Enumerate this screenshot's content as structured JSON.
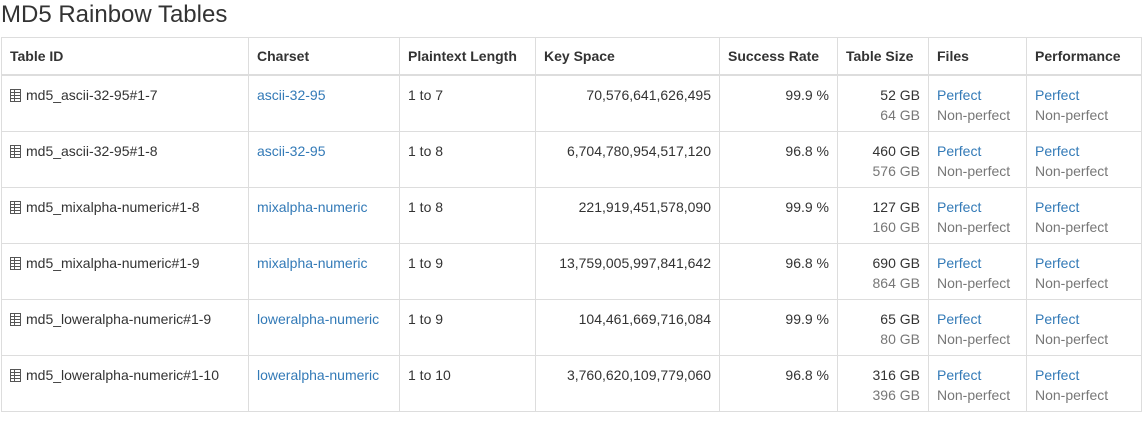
{
  "page": {
    "title": "MD5 Rainbow Tables"
  },
  "table": {
    "headers": {
      "table_id": "Table ID",
      "charset": "Charset",
      "plaintext_length": "Plaintext Length",
      "key_space": "Key Space",
      "success_rate": "Success Rate",
      "table_size": "Table Size",
      "files": "Files",
      "performance": "Performance"
    },
    "rows": [
      {
        "table_id": "md5_ascii-32-95#1-7",
        "charset": "ascii-32-95",
        "plaintext_length": "1 to 7",
        "key_space": "70,576,641,626,495",
        "success_rate": "99.9 %",
        "size_perfect": "52 GB",
        "size_nonperfect": "64 GB",
        "files_perfect": "Perfect",
        "files_nonperfect": "Non-perfect",
        "perf_perfect": "Perfect",
        "perf_nonperfect": "Non-perfect"
      },
      {
        "table_id": "md5_ascii-32-95#1-8",
        "charset": "ascii-32-95",
        "plaintext_length": "1 to 8",
        "key_space": "6,704,780,954,517,120",
        "success_rate": "96.8 %",
        "size_perfect": "460 GB",
        "size_nonperfect": "576 GB",
        "files_perfect": "Perfect",
        "files_nonperfect": "Non-perfect",
        "perf_perfect": "Perfect",
        "perf_nonperfect": "Non-perfect"
      },
      {
        "table_id": "md5_mixalpha-numeric#1-8",
        "charset": "mixalpha-numeric",
        "plaintext_length": "1 to 8",
        "key_space": "221,919,451,578,090",
        "success_rate": "99.9 %",
        "size_perfect": "127 GB",
        "size_nonperfect": "160 GB",
        "files_perfect": "Perfect",
        "files_nonperfect": "Non-perfect",
        "perf_perfect": "Perfect",
        "perf_nonperfect": "Non-perfect"
      },
      {
        "table_id": "md5_mixalpha-numeric#1-9",
        "charset": "mixalpha-numeric",
        "plaintext_length": "1 to 9",
        "key_space": "13,759,005,997,841,642",
        "success_rate": "96.8 %",
        "size_perfect": "690 GB",
        "size_nonperfect": "864 GB",
        "files_perfect": "Perfect",
        "files_nonperfect": "Non-perfect",
        "perf_perfect": "Perfect",
        "perf_nonperfect": "Non-perfect"
      },
      {
        "table_id": "md5_loweralpha-numeric#1-9",
        "charset": "loweralpha-numeric",
        "plaintext_length": "1 to 9",
        "key_space": "104,461,669,716,084",
        "success_rate": "99.9 %",
        "size_perfect": "65 GB",
        "size_nonperfect": "80 GB",
        "files_perfect": "Perfect",
        "files_nonperfect": "Non-perfect",
        "perf_perfect": "Perfect",
        "perf_nonperfect": "Non-perfect"
      },
      {
        "table_id": "md5_loweralpha-numeric#1-10",
        "charset": "loweralpha-numeric",
        "plaintext_length": "1 to 10",
        "key_space": "3,760,620,109,779,060",
        "success_rate": "96.8 %",
        "size_perfect": "316 GB",
        "size_nonperfect": "396 GB",
        "files_perfect": "Perfect",
        "files_nonperfect": "Non-perfect",
        "perf_perfect": "Perfect",
        "perf_nonperfect": "Non-perfect"
      }
    ]
  },
  "icons": {
    "row_icon": "database-table-icon"
  },
  "colors": {
    "text": "#333333",
    "link": "#337ab7",
    "muted": "#777777",
    "border": "#dddddd"
  }
}
